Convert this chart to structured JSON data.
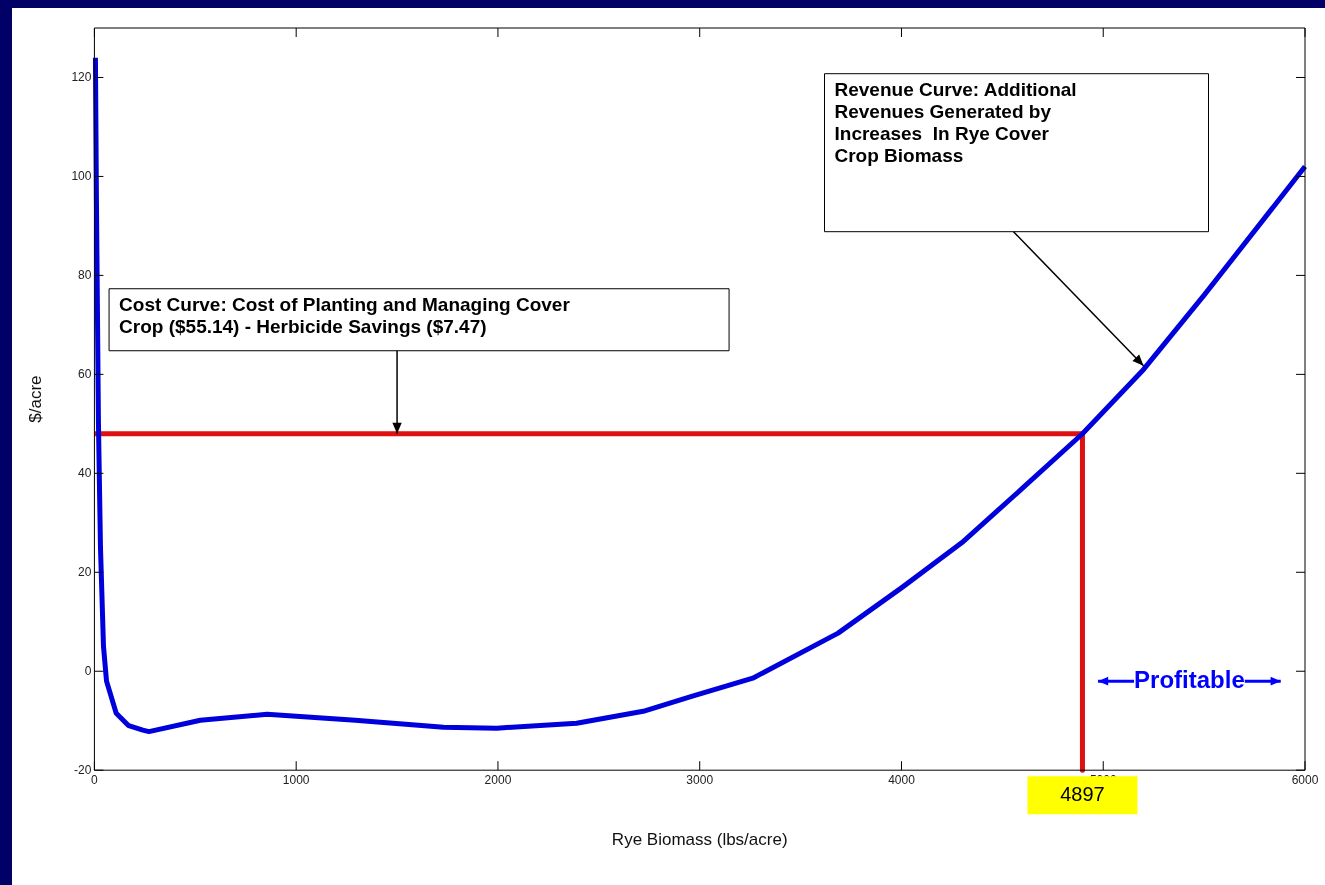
{
  "chart_data": {
    "type": "line",
    "xlabel": "Rye Biomass (lbs/acre)",
    "ylabel": "$/acre",
    "xlim": [
      0,
      6000
    ],
    "xticks": [
      0,
      1000,
      2000,
      3000,
      4000,
      5000,
      6000
    ],
    "ylim": [
      -20,
      130
    ],
    "yticks": [
      -20,
      0,
      20,
      40,
      60,
      80,
      100,
      120
    ],
    "grid": false,
    "legend": false,
    "marker": "none",
    "line_style": "solid",
    "series": [
      {
        "color": "#0000dd",
        "x": [
          5,
          10,
          20,
          30,
          45,
          60,
          108,
          170,
          240,
          270,
          525,
          855,
          1293,
          1730,
          1995,
          2390,
          2720,
          2960,
          3263,
          3686,
          4005,
          4300,
          4600,
          4897,
          5200,
          5500,
          6000
        ],
        "values": [
          124,
          95,
          50,
          25,
          5,
          -2,
          -8.5,
          -11,
          -11.9,
          -12.2,
          -9.9,
          -8.7,
          -9.9,
          -11.3,
          -11.5,
          -10.5,
          -8.1,
          -5.1,
          -1.4,
          7.7,
          17,
          26,
          37,
          48,
          61,
          76,
          102
        ]
      },
      {
        "color": "#dd1111",
        "x": [
          0,
          4897,
          4897
        ],
        "values": [
          48,
          48,
          -20
        ]
      }
    ],
    "annotations": [
      {
        "text": "Cost Curve: Cost of Planting and Managing Cover Crop ($55.14) - Herbicide Savings ($7.47)",
        "x": 1500,
        "y": 48
      },
      "Revenue Curve: Additional Revenues Generated by Increases  In Rye Cover Crop Biomass",
      {
        "text": "4897",
        "x": 4897,
        "y": -20
      },
      "Profitable"
    ]
  }
}
